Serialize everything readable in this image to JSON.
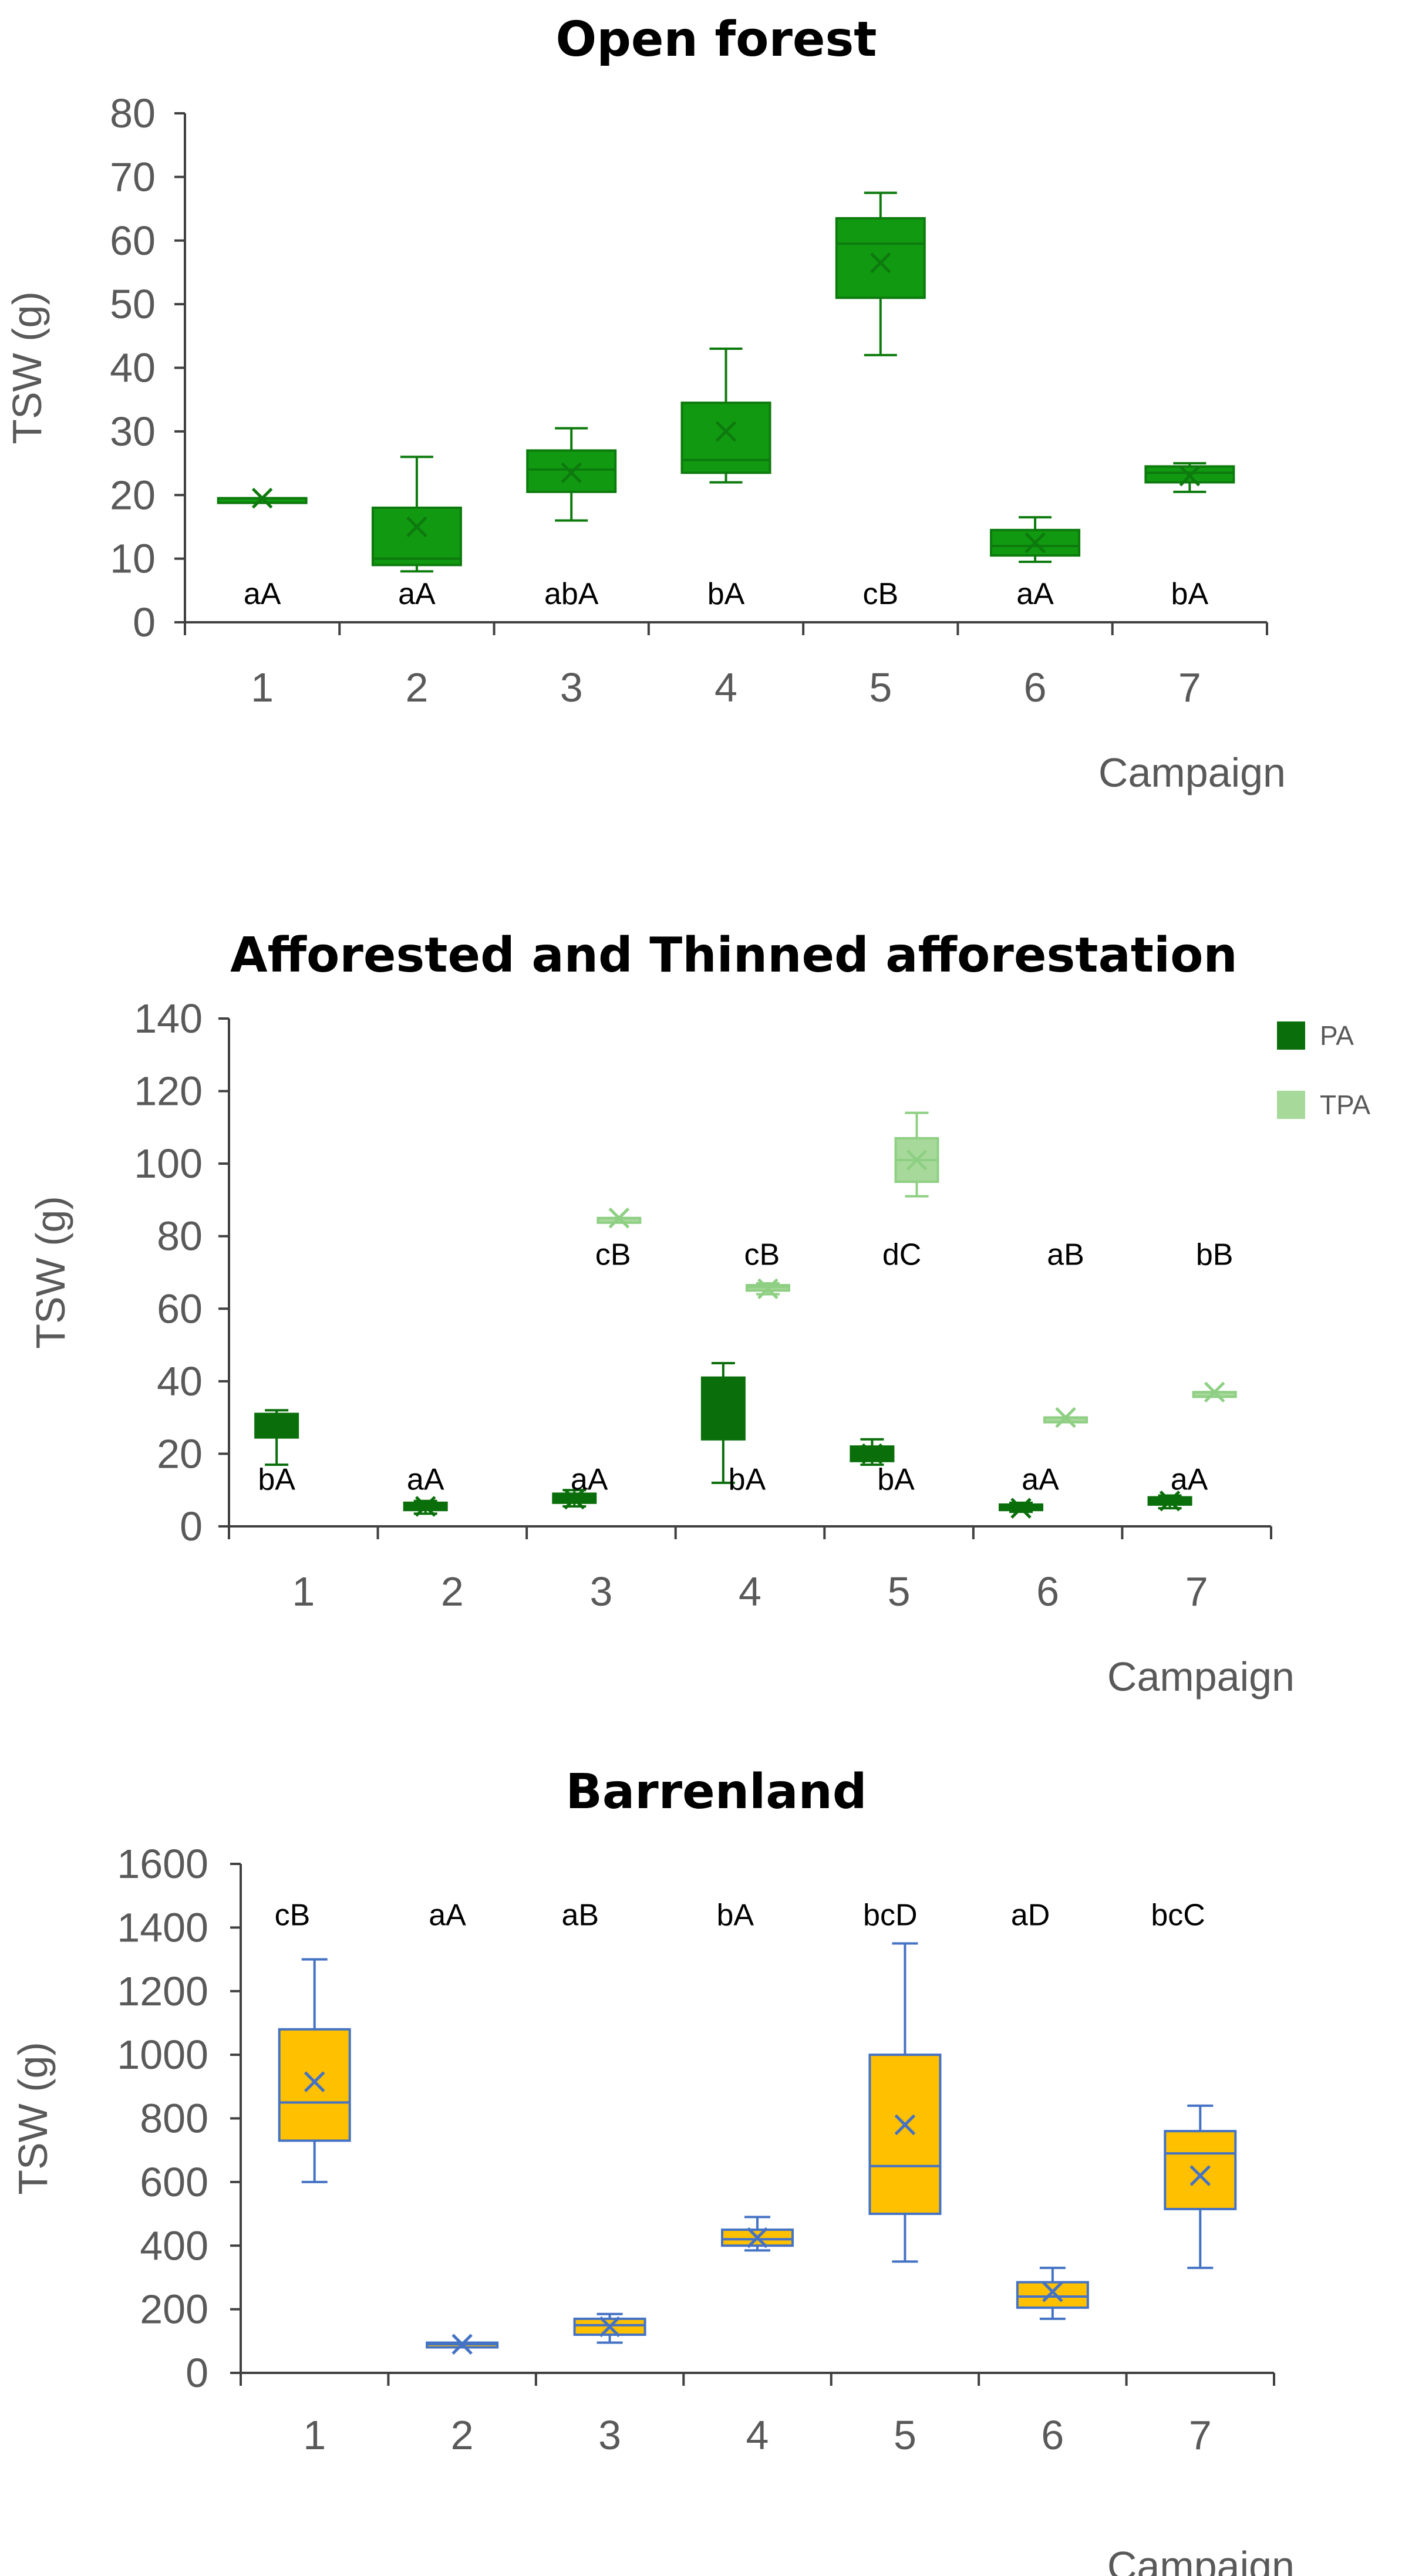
{
  "chart_data": [
    {
      "type": "boxplot",
      "title": "Open forest",
      "xlabel": "Campaign",
      "ylabel": "TSW (g)",
      "ylim": [
        0,
        80
      ],
      "yticks": [
        0,
        10,
        20,
        30,
        40,
        50,
        60,
        70,
        80
      ],
      "categories": [
        "1",
        "2",
        "3",
        "4",
        "5",
        "6",
        "7"
      ],
      "colors": {
        "box": "#119a11",
        "line": "#0d7a0d"
      },
      "series": [
        {
          "name": "Open forest",
          "boxes": [
            {
              "min": 19.5,
              "q1": 19.5,
              "median": 19.5,
              "q3": 19.5,
              "max": 19.5,
              "mean": 19.5
            },
            {
              "min": 8,
              "q1": 9,
              "median": 10,
              "q3": 18,
              "max": 26,
              "mean": 15
            },
            {
              "min": 16,
              "q1": 20.5,
              "median": 24,
              "q3": 27,
              "max": 30.5,
              "mean": 23.5
            },
            {
              "min": 22,
              "q1": 23.5,
              "median": 25.5,
              "q3": 34.5,
              "max": 43,
              "mean": 30
            },
            {
              "min": 42,
              "q1": 51,
              "median": 59.5,
              "q3": 63.5,
              "max": 67.5,
              "mean": 56.5
            },
            {
              "min": 9.5,
              "q1": 10.5,
              "median": 12,
              "q3": 14.5,
              "max": 16.5,
              "mean": 12.5
            },
            {
              "min": 20.5,
              "q1": 22,
              "median": 23.5,
              "q3": 24.5,
              "max": 25,
              "mean": 23
            }
          ]
        }
      ],
      "letters": [
        {
          "text": "aA",
          "value": 4.5,
          "offset": 0
        },
        {
          "text": "aA",
          "value": 4.5,
          "offset": 0
        },
        {
          "text": "abA",
          "value": 4.5,
          "offset": 0
        },
        {
          "text": "bA",
          "value": 4.5,
          "offset": 0
        },
        {
          "text": "cB",
          "value": 4.5,
          "offset": 0
        },
        {
          "text": "aA",
          "value": 4.5,
          "offset": 0
        },
        {
          "text": "bA",
          "value": 4.5,
          "offset": 0
        }
      ]
    },
    {
      "type": "boxplot",
      "title": "Afforested and Thinned afforestation",
      "xlabel": "Campaign",
      "ylabel": "TSW (g)",
      "ylim": [
        0,
        140
      ],
      "yticks": [
        0,
        20,
        40,
        60,
        80,
        100,
        120,
        140
      ],
      "categories": [
        "1",
        "2",
        "3",
        "4",
        "5",
        "6",
        "7"
      ],
      "legend": {
        "position": "top-right",
        "items": [
          "PA",
          "TPA"
        ]
      },
      "colors": {
        "box": "#0a6e0a",
        "line": "#0a6e0a",
        "box2": "#a6d99a",
        "line2": "#8fcf84"
      },
      "series": [
        {
          "name": "PA",
          "offset": -0.18,
          "boxes": [
            {
              "min": 17,
              "q1": 24.5,
              "median": 28,
              "q3": 31,
              "max": 32,
              "mean": 28
            },
            {
              "min": 3.5,
              "q1": 4.5,
              "median": 5.5,
              "q3": 6.5,
              "max": 7,
              "mean": 5.5
            },
            {
              "min": 5.5,
              "q1": 6.5,
              "median": 7.5,
              "q3": 9,
              "max": 10,
              "mean": 7.5
            },
            {
              "min": 12,
              "q1": 24,
              "median": 35,
              "q3": 41,
              "max": 45,
              "mean": 31
            },
            {
              "min": 17,
              "q1": 18,
              "median": 20,
              "q3": 22,
              "max": 24,
              "mean": 20
            },
            {
              "min": 4,
              "q1": 4.5,
              "median": 5,
              "q3": 6,
              "max": 6.5,
              "mean": 5
            },
            {
              "min": 5,
              "q1": 6,
              "median": 7,
              "q3": 8,
              "max": 8.5,
              "mean": 7
            }
          ]
        },
        {
          "name": "TPA",
          "offset": 0.12,
          "boxes": [
            null,
            null,
            {
              "min": 85,
              "q1": 85,
              "median": 85,
              "q3": 85,
              "max": 85,
              "mean": 85
            },
            {
              "min": 64,
              "q1": 65,
              "median": 66,
              "q3": 66.5,
              "max": 67,
              "mean": 65.5
            },
            {
              "min": 91,
              "q1": 95,
              "median": 101,
              "q3": 107,
              "max": 114,
              "mean": 101
            },
            {
              "min": 30,
              "q1": 30,
              "median": 30,
              "q3": 30,
              "max": 30,
              "mean": 30
            },
            {
              "min": 37,
              "q1": 37,
              "median": 37,
              "q3": 37,
              "max": 37,
              "mean": 37
            }
          ]
        }
      ],
      "letters": [
        {
          "text": "bA",
          "value": 13,
          "offset": -0.18
        },
        {
          "text": "aA",
          "value": 13,
          "offset": -0.18
        },
        {
          "text": "aA",
          "value": 13,
          "offset": -0.08
        },
        {
          "text": "bA",
          "value": 13,
          "offset": -0.02
        },
        {
          "text": "bA",
          "value": 13,
          "offset": -0.02
        },
        {
          "text": "aA",
          "value": 13,
          "offset": -0.05
        },
        {
          "text": "aA",
          "value": 13,
          "offset": -0.05
        },
        {
          "text": "cB",
          "value": 75,
          "offset": 0.08
        },
        {
          "text": "cB",
          "value": 75,
          "offset": 0.08
        },
        {
          "text": "dC",
          "value": 75,
          "offset": 0.02
        },
        {
          "text": "aB",
          "value": 75,
          "offset": 0.12
        },
        {
          "text": "bB",
          "value": 75,
          "offset": 0.12
        }
      ],
      "letter_positions": [
        1,
        2,
        3,
        4,
        5,
        6,
        7,
        3,
        4,
        5,
        6,
        7
      ]
    },
    {
      "type": "boxplot",
      "title": "Barrenland",
      "xlabel": "Campaign",
      "ylabel": "TSW (g)",
      "ylim": [
        0,
        1600
      ],
      "yticks": [
        0,
        200,
        400,
        600,
        800,
        1000,
        1200,
        1400,
        1600
      ],
      "categories": [
        "1",
        "2",
        "3",
        "4",
        "5",
        "6",
        "7"
      ],
      "colors": {
        "box": "#ffc000",
        "line": "#4472c4"
      },
      "series": [
        {
          "name": "Barrenland",
          "boxes": [
            {
              "min": 600,
              "q1": 730,
              "median": 850,
              "q3": 1080,
              "max": 1300,
              "mean": 915
            },
            {
              "min": 90,
              "q1": 90,
              "median": 90,
              "q3": 95,
              "max": 95,
              "mean": 90
            },
            {
              "min": 95,
              "q1": 120,
              "median": 150,
              "q3": 170,
              "max": 185,
              "mean": 145
            },
            {
              "min": 385,
              "q1": 400,
              "median": 420,
              "q3": 450,
              "max": 490,
              "mean": 425
            },
            {
              "min": 350,
              "q1": 500,
              "median": 650,
              "q3": 1000,
              "max": 1350,
              "mean": 780
            },
            {
              "min": 170,
              "q1": 205,
              "median": 240,
              "q3": 285,
              "max": 330,
              "mean": 255
            },
            {
              "min": 330,
              "q1": 515,
              "median": 690,
              "q3": 760,
              "max": 840,
              "mean": 620
            }
          ]
        }
      ],
      "letters": [
        {
          "text": "cB",
          "value": 1440,
          "offset": -0.15
        },
        {
          "text": "aA",
          "value": 1440,
          "offset": -0.1
        },
        {
          "text": "aB",
          "value": 1440,
          "offset": -0.2
        },
        {
          "text": "bA",
          "value": 1440,
          "offset": -0.15
        },
        {
          "text": "bcD",
          "value": 1440,
          "offset": -0.1
        },
        {
          "text": "aD",
          "value": 1440,
          "offset": -0.15
        },
        {
          "text": "bcC",
          "value": 1440,
          "offset": -0.15
        }
      ]
    }
  ]
}
